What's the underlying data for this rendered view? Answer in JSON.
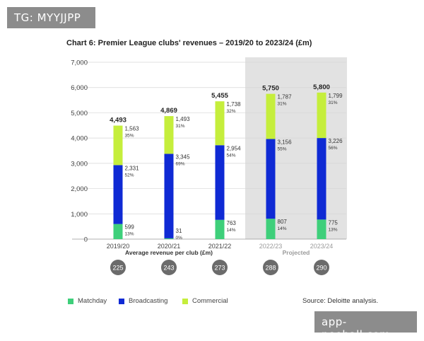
{
  "watermarks": {
    "top": "TG: MYYJJPP",
    "bottom": "app-neoball.com"
  },
  "colors": {
    "matchday": "#3ecf7a",
    "broadcasting": "#0f2ad4",
    "commercial": "#c5ee3c",
    "projected_bg": "#e2e2e2",
    "badge": "#6b6b6b",
    "grid": "#d6d6d6"
  },
  "chart_data": {
    "type": "bar",
    "stacked": true,
    "title": "Chart 6: Premier League clubs' revenues – 2019/20 to 2023/24 (£m)",
    "categories": [
      "2019/20",
      "2020/21",
      "2021/22",
      "2022/23",
      "2023/24"
    ],
    "projected_categories": [
      "2022/23",
      "2023/24"
    ],
    "projected_label": "Projected",
    "series": [
      {
        "name": "Matchday",
        "values": [
          599,
          31,
          763,
          807,
          775
        ],
        "shares": [
          "13%",
          "0%",
          "14%",
          "14%",
          "13%"
        ]
      },
      {
        "name": "Broadcasting",
        "values": [
          2331,
          3345,
          2954,
          3156,
          3226
        ],
        "shares": [
          "52%",
          "69%",
          "54%",
          "55%",
          "56%"
        ]
      },
      {
        "name": "Commercial",
        "values": [
          1563,
          1493,
          1738,
          1787,
          1799
        ],
        "shares": [
          "35%",
          "31%",
          "32%",
          "31%",
          "31%"
        ]
      }
    ],
    "totals": [
      4493,
      4869,
      5455,
      5750,
      5800
    ],
    "ylim": [
      0,
      7000
    ],
    "yticks": [
      0,
      1000,
      2000,
      3000,
      4000,
      5000,
      6000,
      7000
    ],
    "grid": true,
    "legend_position": "bottom-left",
    "avg_label": "Average revenue per club (£m)",
    "avg_values": [
      225,
      243,
      273,
      288,
      290
    ],
    "source": "Source: Deloitte analysis."
  }
}
